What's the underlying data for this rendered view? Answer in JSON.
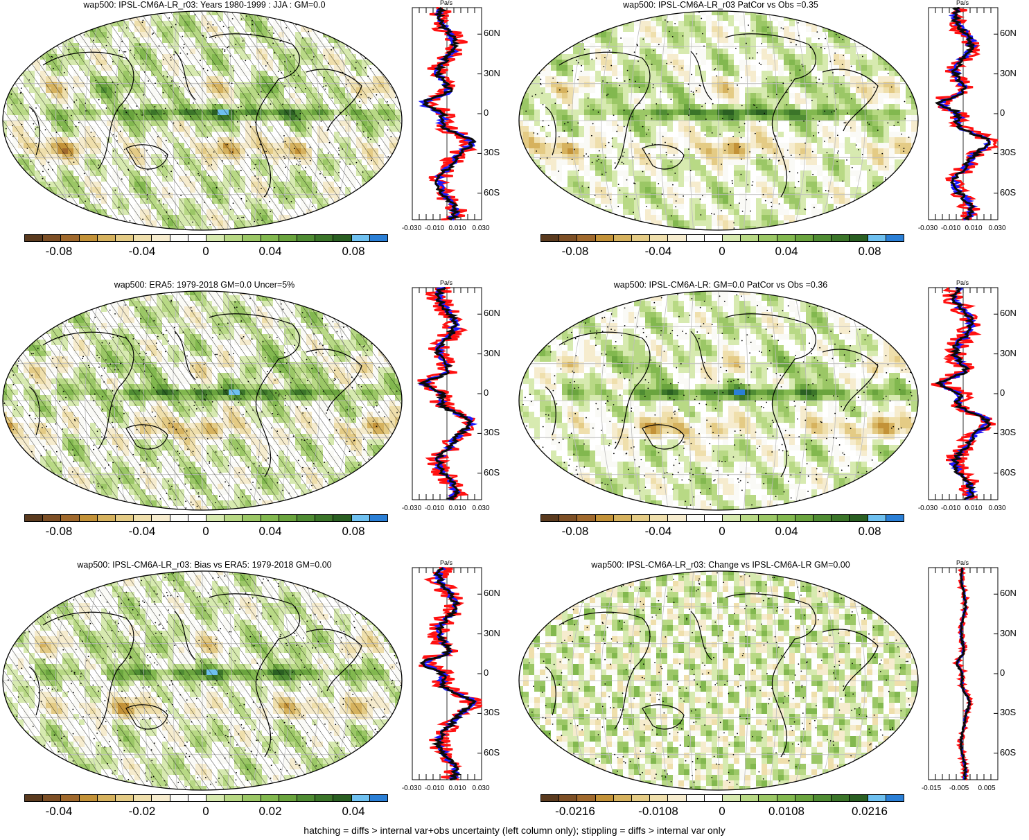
{
  "footnote": "hatching = diffs > internal var+obs uncertainty (left column only); stippling = diffs > internal var only",
  "colors": {
    "palette": [
      "#5a3a1e",
      "#7d4f25",
      "#a0692c",
      "#c39238",
      "#d6b25e",
      "#e4cb85",
      "#efdfac",
      "#f6ecce",
      "#fafaf6",
      "#ffffff",
      "#d7eab0",
      "#b8d985",
      "#9bc766",
      "#82b84f",
      "#6aa43e",
      "#4f8c33",
      "#3b7529",
      "#2a5f22",
      "#6ec0f0",
      "#2a7fd6"
    ],
    "model_line": "#0a0a0a",
    "obs_line": "#ff1010",
    "other_line": "#1a1aff",
    "coast": "#000000",
    "grid": "#bdbdbd"
  },
  "panels": [
    {
      "title": "wap500: IPSL-CM6A-LR_r03: Years 1980-1999 : JJA : GM=0.0",
      "colorbar_labels": [
        "-0.08",
        "-0.04",
        "0",
        "0.04",
        "0.08"
      ],
      "zonal_xticks": [
        "-0.030",
        "-0.010",
        "0.010",
        "0.030"
      ],
      "zonal_yticks": [
        "60N",
        "30N",
        "0",
        "30S",
        "60S"
      ],
      "units": "Pa/s",
      "hatched": true
    },
    {
      "title": "wap500: IPSL-CM6A-LR_r03 PatCor vs Obs =0.35",
      "colorbar_labels": [
        "-0.08",
        "-0.04",
        "0",
        "0.04",
        "0.08"
      ],
      "zonal_xticks": [
        "-0.030",
        "-0.010",
        "0.010",
        "0.030"
      ],
      "zonal_yticks": [
        "60N",
        "30N",
        "0",
        "30S",
        "60S"
      ],
      "units": "Pa/s",
      "hatched": false
    },
    {
      "title": "wap500: ERA5: 1979-2018 GM=0.0 Uncer=5%",
      "colorbar_labels": [
        "-0.08",
        "-0.04",
        "0",
        "0.04",
        "0.08"
      ],
      "zonal_xticks": [
        "-0.030",
        "-0.010",
        "0.010",
        "0.030"
      ],
      "zonal_yticks": [
        "60N",
        "30N",
        "0",
        "30S",
        "60S"
      ],
      "units": "Pa/s",
      "hatched": true
    },
    {
      "title": "wap500: IPSL-CM6A-LR: GM=0.0 PatCor vs Obs =0.36",
      "colorbar_labels": [
        "-0.08",
        "-0.04",
        "0",
        "0.04",
        "0.08"
      ],
      "zonal_xticks": [
        "-0.030",
        "-0.010",
        "0.010",
        "0.030"
      ],
      "zonal_yticks": [
        "60N",
        "30N",
        "0",
        "30S",
        "60S"
      ],
      "units": "Pa/s",
      "hatched": false
    },
    {
      "title": "wap500: IPSL-CM6A-LR_r03: Bias vs ERA5: 1979-2018 GM=0.00",
      "colorbar_labels": [
        "-0.04",
        "-0.02",
        "0",
        "0.02",
        "0.04"
      ],
      "zonal_xticks": [
        "-0.030",
        "-0.010",
        "0.010",
        "0.030"
      ],
      "zonal_yticks": [
        "60N",
        "30N",
        "0",
        "30S",
        "60S"
      ],
      "units": "Pa/s",
      "hatched": true
    },
    {
      "title": "wap500: IPSL-CM6A-LR_r03: Change vs IPSL-CM6A-LR GM=0.00",
      "colorbar_labels": [
        "-0.0216",
        "-0.0108",
        "0",
        "0.0108",
        "0.0216"
      ],
      "zonal_xticks": [
        "-0.015",
        "-0.005",
        "0.005"
      ],
      "zonal_yticks": [
        "60N",
        "30N",
        "0",
        "30S",
        "60S"
      ],
      "units": "Pa/s",
      "hatched": false
    }
  ]
}
